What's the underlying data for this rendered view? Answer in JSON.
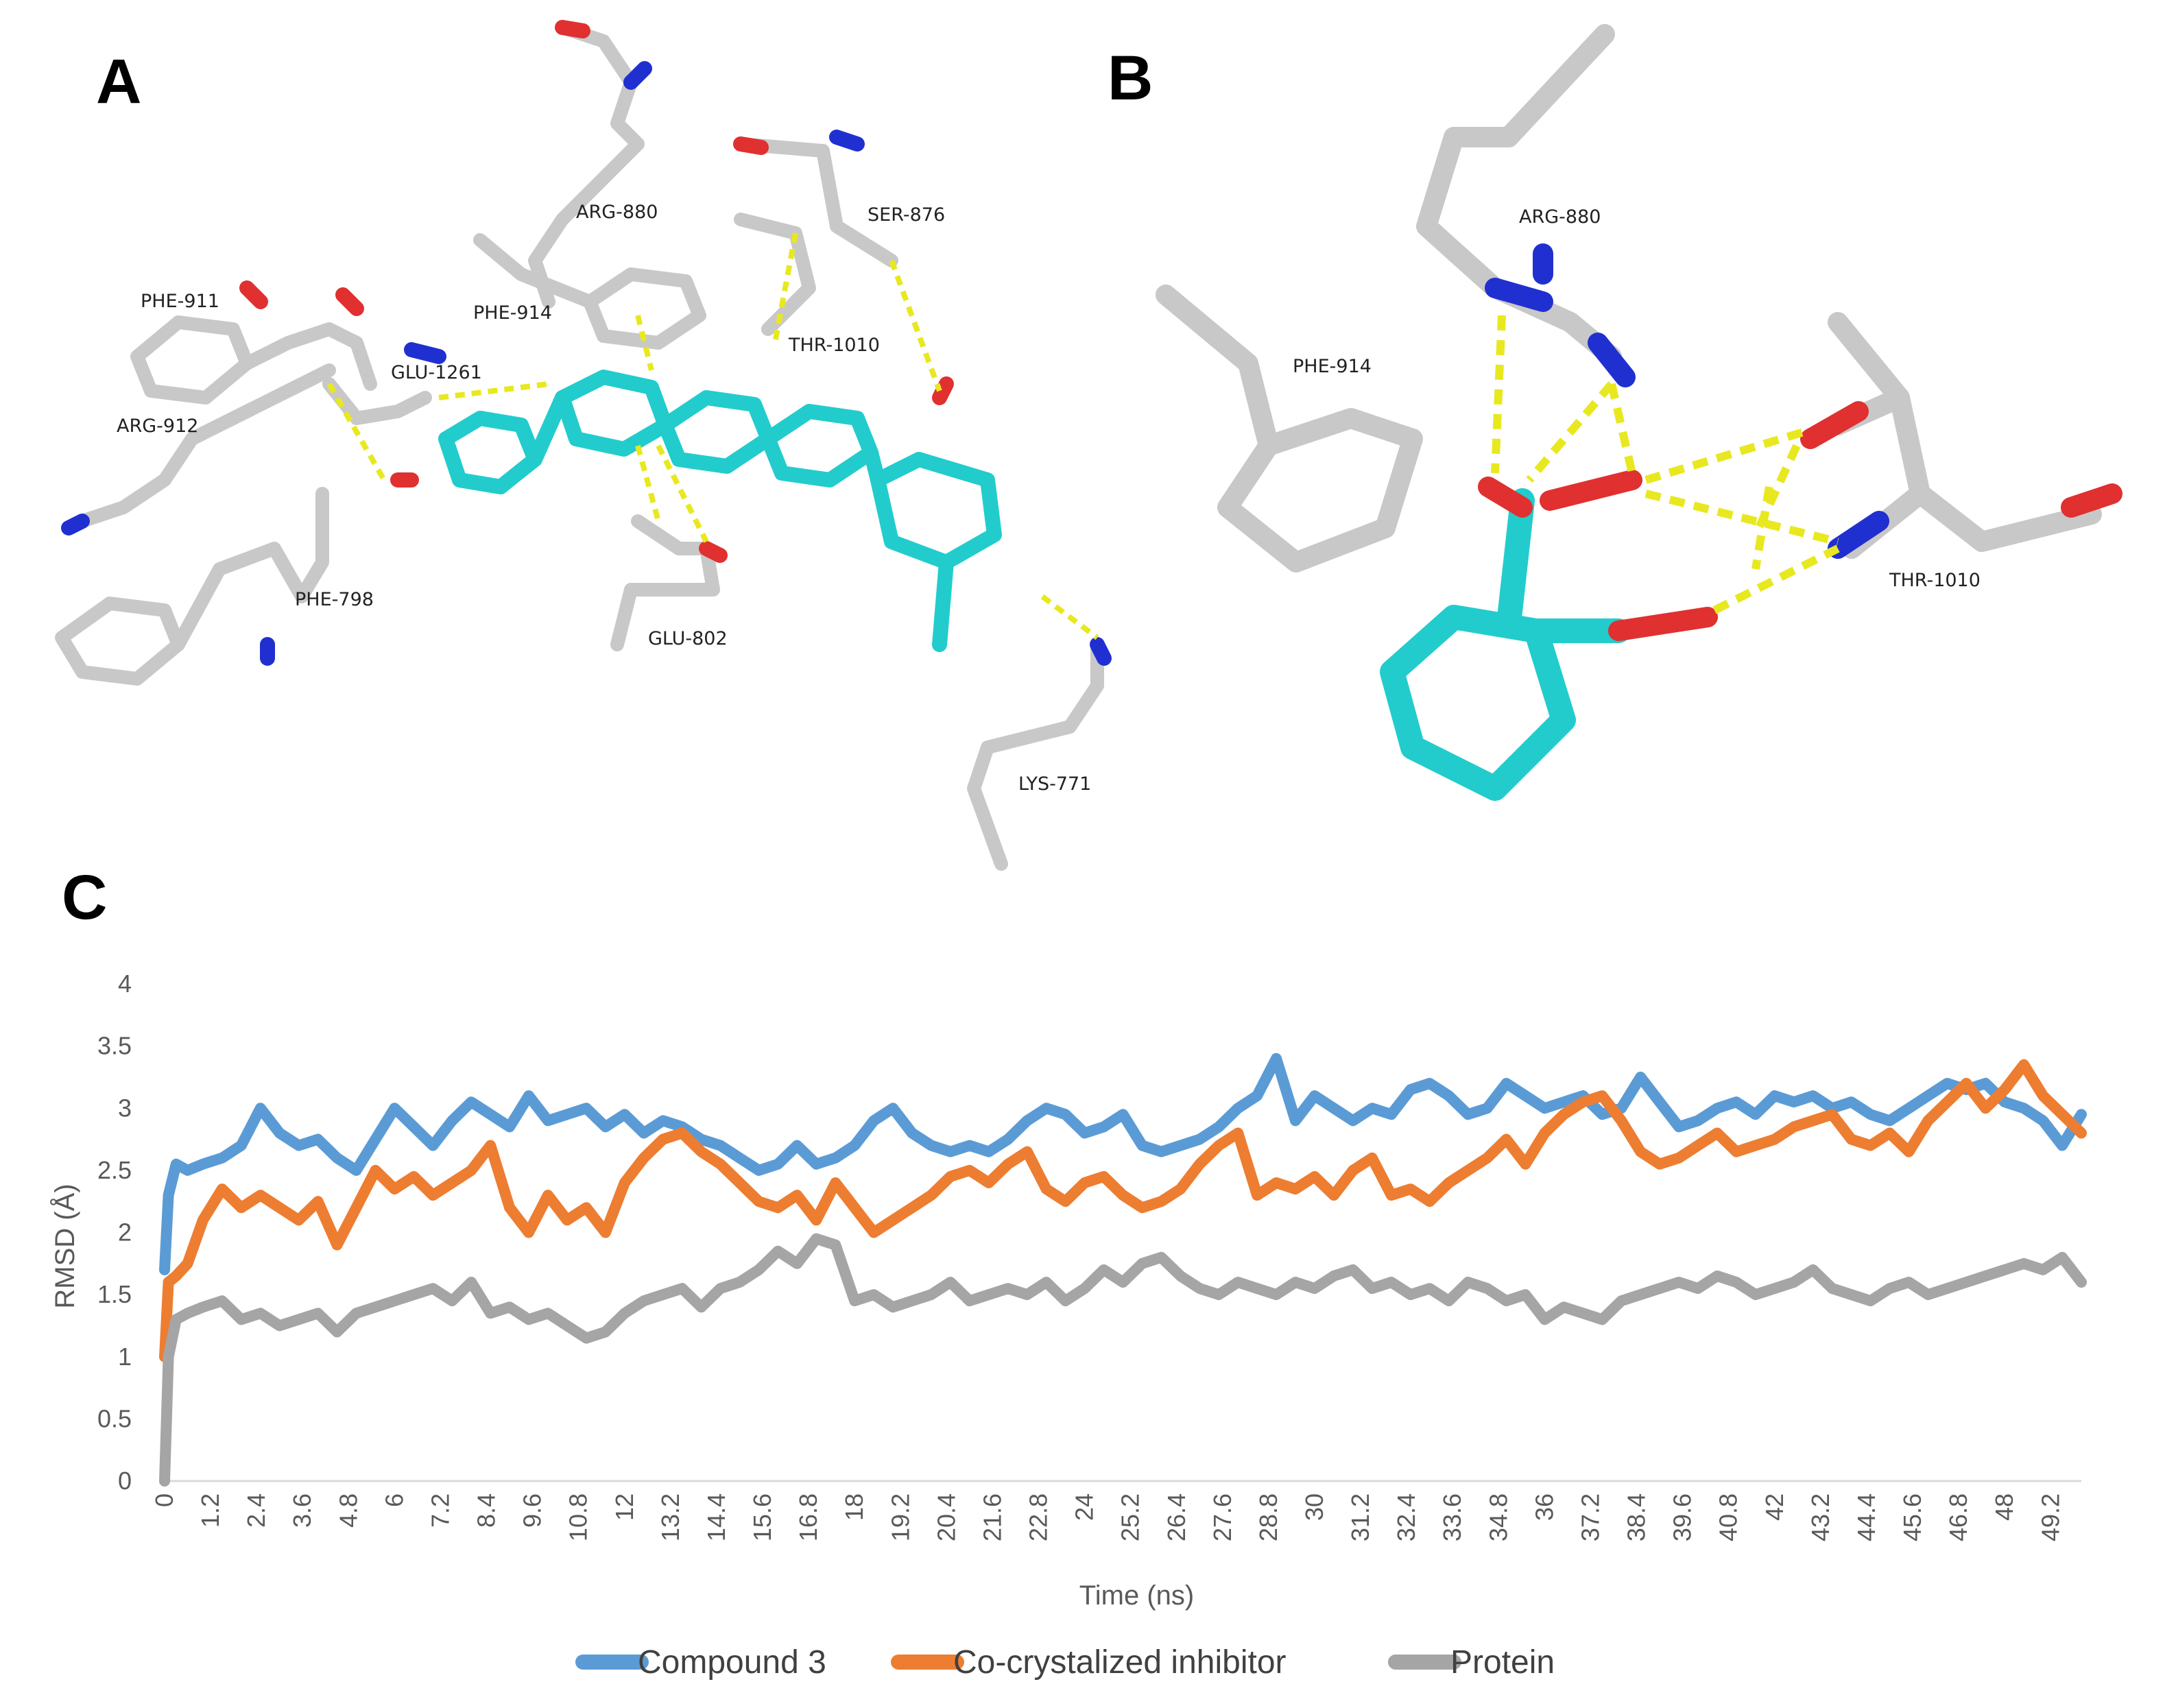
{
  "figure": {
    "panels": {
      "a": "A",
      "b": "B",
      "c": "C"
    },
    "panel_a_residues": [
      "ARG-880",
      "SER-876",
      "PHE-911",
      "PHE-914",
      "THR-1010",
      "GLU-1261",
      "ARG-912",
      "PHE-798",
      "GLU-802",
      "LYS-771"
    ],
    "panel_b_residues": [
      "ARG-880",
      "PHE-914",
      "THR-1010"
    ],
    "colors": {
      "protein_stick": "#c8c8c8",
      "ligand_stick": "#22cccc",
      "oxygen": "#e03030",
      "nitrogen": "#2030d0",
      "hbond": "#e8e820"
    }
  },
  "chart_data": {
    "type": "line",
    "xlabel": "Time (ns)",
    "ylabel": "RMSD (Å)",
    "ylim": [
      0,
      4
    ],
    "xlim": [
      0,
      50
    ],
    "yticks": [
      "0",
      "0.5",
      "1",
      "1.5",
      "2",
      "2.5",
      "3",
      "3.5",
      "4"
    ],
    "xticks": [
      "0",
      "1.2",
      "2.4",
      "3.6",
      "4.8",
      "6",
      "7.2",
      "8.4",
      "9.6",
      "10.8",
      "12",
      "13.2",
      "14.4",
      "15.6",
      "16.8",
      "18",
      "19.2",
      "20.4",
      "21.6",
      "22.8",
      "24",
      "25.2",
      "26.4",
      "27.6",
      "28.8",
      "30",
      "31.2",
      "32.4",
      "33.6",
      "34.8",
      "36",
      "37.2",
      "38.4",
      "39.6",
      "40.8",
      "42",
      "43.2",
      "44.4",
      "45.6",
      "46.8",
      "48",
      "49.2"
    ],
    "legend_position": "bottom",
    "grid": false,
    "series": [
      {
        "name": "Compound 3",
        "color": "#5b9bd5",
        "x": [
          0,
          0.1,
          0.3,
          0.6,
          1.0,
          1.5,
          2.0,
          2.5,
          3.0,
          3.5,
          4.0,
          4.5,
          5.0,
          5.5,
          6.0,
          6.5,
          7.0,
          7.5,
          8.0,
          8.5,
          9.0,
          9.5,
          10.0,
          10.5,
          11.0,
          11.5,
          12.0,
          12.5,
          13.0,
          13.5,
          14.0,
          14.5,
          15.0,
          15.5,
          16.0,
          16.5,
          17.0,
          17.5,
          18.0,
          18.5,
          19.0,
          19.5,
          20.0,
          20.5,
          21.0,
          21.5,
          22.0,
          22.5,
          23.0,
          23.5,
          24.0,
          24.5,
          25.0,
          25.5,
          26.0,
          26.5,
          27.0,
          27.5,
          28.0,
          28.5,
          29.0,
          29.5,
          30.0,
          30.5,
          31.0,
          31.5,
          32.0,
          32.5,
          33.0,
          33.5,
          34.0,
          34.5,
          35.0,
          35.5,
          36.0,
          36.5,
          37.0,
          37.5,
          38.0,
          38.5,
          39.0,
          39.5,
          40.0,
          40.5,
          41.0,
          41.5,
          42.0,
          42.5,
          43.0,
          43.5,
          44.0,
          44.5,
          45.0,
          45.5,
          46.0,
          46.5,
          47.0,
          47.5,
          48.0,
          48.5,
          49.0,
          49.5,
          50.0
        ],
        "values": [
          1.7,
          2.3,
          2.55,
          2.5,
          2.55,
          2.6,
          2.7,
          3.0,
          2.8,
          2.7,
          2.75,
          2.6,
          2.5,
          2.75,
          3.0,
          2.85,
          2.7,
          2.9,
          3.05,
          2.95,
          2.85,
          3.1,
          2.9,
          2.95,
          3.0,
          2.85,
          2.95,
          2.8,
          2.9,
          2.85,
          2.75,
          2.7,
          2.6,
          2.5,
          2.55,
          2.7,
          2.55,
          2.6,
          2.7,
          2.9,
          3.0,
          2.8,
          2.7,
          2.65,
          2.7,
          2.65,
          2.75,
          2.9,
          3.0,
          2.95,
          2.8,
          2.85,
          2.95,
          2.7,
          2.65,
          2.7,
          2.75,
          2.85,
          3.0,
          3.1,
          3.4,
          2.9,
          3.1,
          3.0,
          2.9,
          3.0,
          2.95,
          3.15,
          3.2,
          3.1,
          2.95,
          3.0,
          3.2,
          3.1,
          3.0,
          3.05,
          3.1,
          2.95,
          3.0,
          3.25,
          3.05,
          2.85,
          2.9,
          3.0,
          3.05,
          2.95,
          3.1,
          3.05,
          3.1,
          3.0,
          3.05,
          2.95,
          2.9,
          3.0,
          3.1,
          3.2,
          3.15,
          3.2,
          3.05,
          3.0,
          2.9,
          2.7,
          2.95
        ]
      },
      {
        "name": "Co-crystalized inhibitor",
        "color": "#ed7d31",
        "x": [
          0,
          0.1,
          0.3,
          0.6,
          1.0,
          1.5,
          2.0,
          2.5,
          3.0,
          3.5,
          4.0,
          4.5,
          5.0,
          5.5,
          6.0,
          6.5,
          7.0,
          7.5,
          8.0,
          8.5,
          9.0,
          9.5,
          10.0,
          10.5,
          11.0,
          11.5,
          12.0,
          12.5,
          13.0,
          13.5,
          14.0,
          14.5,
          15.0,
          15.5,
          16.0,
          16.5,
          17.0,
          17.5,
          18.0,
          18.5,
          19.0,
          19.5,
          20.0,
          20.5,
          21.0,
          21.5,
          22.0,
          22.5,
          23.0,
          23.5,
          24.0,
          24.5,
          25.0,
          25.5,
          26.0,
          26.5,
          27.0,
          27.5,
          28.0,
          28.5,
          29.0,
          29.5,
          30.0,
          30.5,
          31.0,
          31.5,
          32.0,
          32.5,
          33.0,
          33.5,
          34.0,
          34.5,
          35.0,
          35.5,
          36.0,
          36.5,
          37.0,
          37.5,
          38.0,
          38.5,
          39.0,
          39.5,
          40.0,
          40.5,
          41.0,
          41.5,
          42.0,
          42.5,
          43.0,
          43.5,
          44.0,
          44.5,
          45.0,
          45.5,
          46.0,
          46.5,
          47.0,
          47.5,
          48.0,
          48.5,
          49.0,
          49.5,
          50.0
        ],
        "values": [
          1.0,
          1.6,
          1.65,
          1.75,
          2.1,
          2.35,
          2.2,
          2.3,
          2.2,
          2.1,
          2.25,
          1.9,
          2.2,
          2.5,
          2.35,
          2.45,
          2.3,
          2.4,
          2.5,
          2.7,
          2.2,
          2.0,
          2.3,
          2.1,
          2.2,
          2.0,
          2.4,
          2.6,
          2.75,
          2.8,
          2.65,
          2.55,
          2.4,
          2.25,
          2.2,
          2.3,
          2.1,
          2.4,
          2.2,
          2.0,
          2.1,
          2.2,
          2.3,
          2.45,
          2.5,
          2.4,
          2.55,
          2.65,
          2.35,
          2.25,
          2.4,
          2.45,
          2.3,
          2.2,
          2.25,
          2.35,
          2.55,
          2.7,
          2.8,
          2.3,
          2.4,
          2.35,
          2.45,
          2.3,
          2.5,
          2.6,
          2.3,
          2.35,
          2.25,
          2.4,
          2.5,
          2.6,
          2.75,
          2.55,
          2.8,
          2.95,
          3.05,
          3.1,
          2.9,
          2.65,
          2.55,
          2.6,
          2.7,
          2.8,
          2.65,
          2.7,
          2.75,
          2.85,
          2.9,
          2.95,
          2.75,
          2.7,
          2.8,
          2.65,
          2.9,
          3.05,
          3.2,
          3.0,
          3.15,
          3.35,
          3.1,
          2.95,
          2.8
        ]
      },
      {
        "name": "Protein",
        "color": "#a5a5a5",
        "x": [
          0,
          0.1,
          0.3,
          0.6,
          1.0,
          1.5,
          2.0,
          2.5,
          3.0,
          3.5,
          4.0,
          4.5,
          5.0,
          5.5,
          6.0,
          6.5,
          7.0,
          7.5,
          8.0,
          8.5,
          9.0,
          9.5,
          10.0,
          10.5,
          11.0,
          11.5,
          12.0,
          12.5,
          13.0,
          13.5,
          14.0,
          14.5,
          15.0,
          15.5,
          16.0,
          16.5,
          17.0,
          17.5,
          18.0,
          18.5,
          19.0,
          19.5,
          20.0,
          20.5,
          21.0,
          21.5,
          22.0,
          22.5,
          23.0,
          23.5,
          24.0,
          24.5,
          25.0,
          25.5,
          26.0,
          26.5,
          27.0,
          27.5,
          28.0,
          28.5,
          29.0,
          29.5,
          30.0,
          30.5,
          31.0,
          31.5,
          32.0,
          32.5,
          33.0,
          33.5,
          34.0,
          34.5,
          35.0,
          35.5,
          36.0,
          36.5,
          37.0,
          37.5,
          38.0,
          38.5,
          39.0,
          39.5,
          40.0,
          40.5,
          41.0,
          41.5,
          42.0,
          42.5,
          43.0,
          43.5,
          44.0,
          44.5,
          45.0,
          45.5,
          46.0,
          46.5,
          47.0,
          47.5,
          48.0,
          48.5,
          49.0,
          49.5,
          50.0
        ],
        "values": [
          0.0,
          1.0,
          1.3,
          1.35,
          1.4,
          1.45,
          1.3,
          1.35,
          1.25,
          1.3,
          1.35,
          1.2,
          1.35,
          1.4,
          1.45,
          1.5,
          1.55,
          1.45,
          1.6,
          1.35,
          1.4,
          1.3,
          1.35,
          1.25,
          1.15,
          1.2,
          1.35,
          1.45,
          1.5,
          1.55,
          1.4,
          1.55,
          1.6,
          1.7,
          1.85,
          1.75,
          1.95,
          1.9,
          1.45,
          1.5,
          1.4,
          1.45,
          1.5,
          1.6,
          1.45,
          1.5,
          1.55,
          1.5,
          1.6,
          1.45,
          1.55,
          1.7,
          1.6,
          1.75,
          1.8,
          1.65,
          1.55,
          1.5,
          1.6,
          1.55,
          1.5,
          1.6,
          1.55,
          1.65,
          1.7,
          1.55,
          1.6,
          1.5,
          1.55,
          1.45,
          1.6,
          1.55,
          1.45,
          1.5,
          1.3,
          1.4,
          1.35,
          1.3,
          1.45,
          1.5,
          1.55,
          1.6,
          1.55,
          1.65,
          1.6,
          1.5,
          1.55,
          1.6,
          1.7,
          1.55,
          1.5,
          1.45,
          1.55,
          1.6,
          1.5,
          1.55,
          1.6,
          1.65,
          1.7,
          1.75,
          1.7,
          1.8,
          1.6
        ]
      }
    ]
  }
}
